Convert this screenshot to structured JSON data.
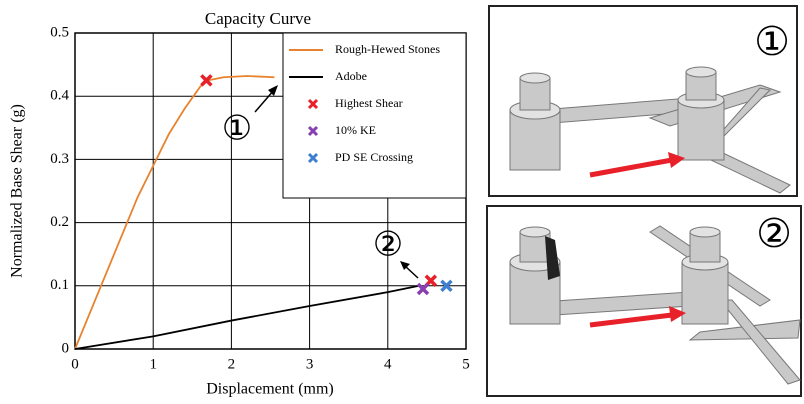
{
  "chart_data": {
    "type": "line",
    "title": "Capacity Curve",
    "x_label": "Displacement (mm)",
    "y_label": "Normalized Base Shear (g)",
    "xlim": [
      0,
      5
    ],
    "ylim": [
      0,
      0.5
    ],
    "xticks": [
      0,
      1,
      2,
      3,
      4,
      5
    ],
    "yticks": [
      0,
      0.1,
      0.2,
      0.3,
      0.4,
      0.5
    ],
    "grid": true,
    "legend": "upper right",
    "series": [
      {
        "name": "Rough-Hewed Stones",
        "color": "#e8822e",
        "x": [
          0,
          0.2,
          0.5,
          0.8,
          1.0,
          1.2,
          1.4,
          1.6,
          1.7,
          1.9,
          2.2,
          2.55
        ],
        "values": [
          0,
          0.06,
          0.15,
          0.24,
          0.29,
          0.34,
          0.38,
          0.415,
          0.425,
          0.43,
          0.432,
          0.43
        ]
      },
      {
        "name": "Adobe",
        "color": "#000000",
        "x": [
          0,
          1,
          2,
          3,
          4,
          4.4
        ],
        "values": [
          0,
          0.02,
          0.045,
          0.068,
          0.09,
          0.1
        ]
      }
    ],
    "markers": [
      {
        "name": "Highest Shear",
        "color": "#e8202a",
        "x": [
          1.68,
          4.55
        ],
        "values": [
          0.425,
          0.108
        ]
      },
      {
        "name": "10% KE",
        "color": "#8a3fb0",
        "x": [
          4.45
        ],
        "values": [
          0.095
        ]
      },
      {
        "name": "PD SE Crossing",
        "color": "#3f7fd0",
        "x": [
          4.75
        ],
        "values": [
          0.1
        ]
      }
    ],
    "annotations": [
      "①",
      "②"
    ]
  },
  "panels": [
    {
      "label": "①"
    },
    {
      "label": "②"
    }
  ]
}
